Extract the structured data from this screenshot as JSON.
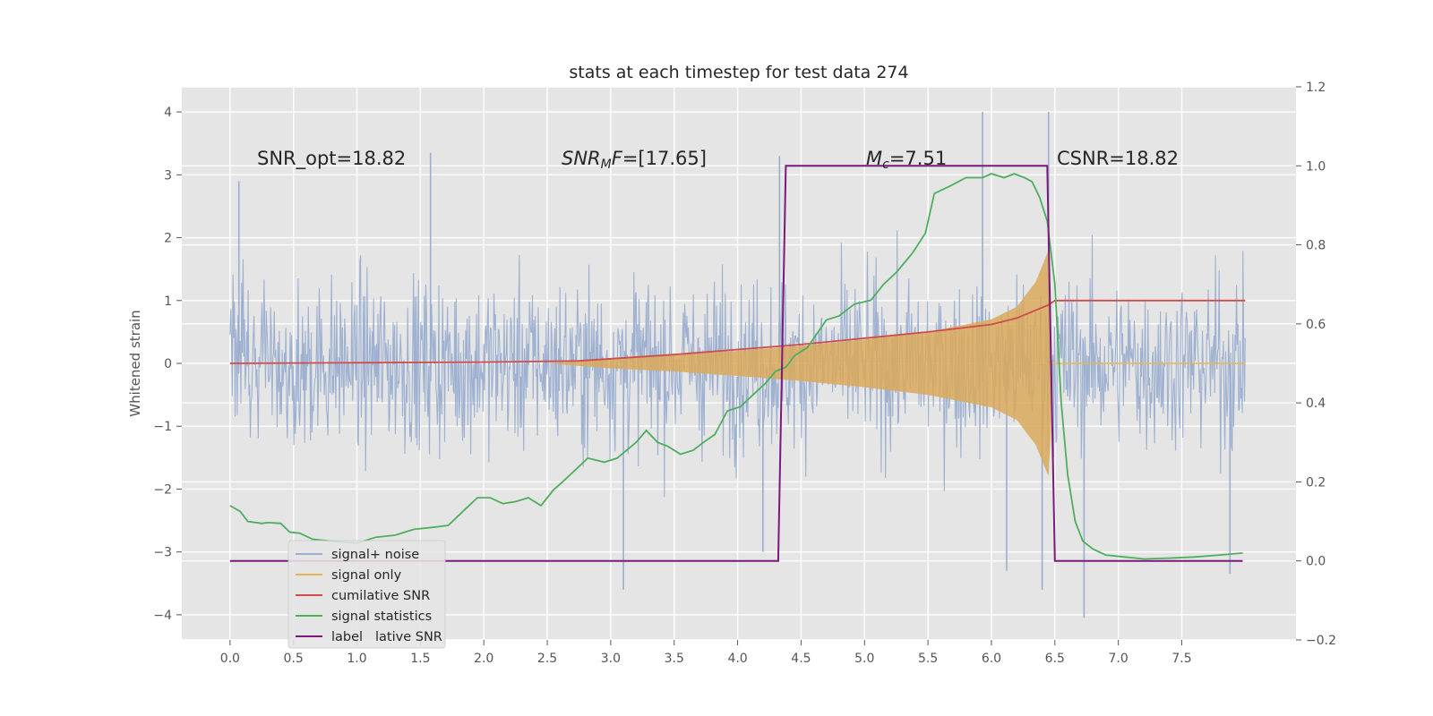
{
  "colors": {
    "background": "#E5E5E5",
    "grid": "#FFFFFF",
    "noise": "#9AAED0",
    "signal": "#E8B450",
    "signal_fill": "#D9A95A",
    "cumulative": "#D04B4B",
    "stats": "#4FAE5E",
    "label": "#7A1A7A"
  },
  "chart_data": {
    "type": "line",
    "title": "stats at each timestep for test data 274",
    "ylabel": "Whitened strain",
    "xlim": [
      -0.38,
      8.4
    ],
    "ylim": [
      -4.4,
      4.4
    ],
    "y2lim": [
      -0.2,
      1.2
    ],
    "grid": true,
    "legend_position": "lower-left",
    "x_ticks": [
      "0.0",
      "0.5",
      "1.0",
      "1.5",
      "2.0",
      "2.5",
      "3.0",
      "3.5",
      "4.0",
      "4.5",
      "5.0",
      "5.5",
      "6.0",
      "6.5",
      "7.0",
      "7.5"
    ],
    "y_ticks": [
      "4",
      "3",
      "2",
      "1",
      "0",
      "−1",
      "−2",
      "−3",
      "−4"
    ],
    "y2_ticks": [
      "1.2",
      "1.0",
      "0.8",
      "0.6",
      "0.4",
      "0.2",
      "0.0",
      "−0.2"
    ],
    "annotations": {
      "snr_opt": "SNR_opt=18.82",
      "snr_mf_main": "SNR",
      "snr_mf_sub": "M",
      "snr_mf_rest": "F=[17.65]",
      "mc_main": "M",
      "mc_sub": "c",
      "mc_rest": "=7.51",
      "csnr": "CSNR=18.82"
    },
    "legend": [
      "signal+ noise",
      "signal only",
      "cumilative SNR",
      "signal statistics",
      "label"
    ],
    "legend_overlap_text": "cumilative SNR",
    "series": [
      {
        "name": "signal+ noise",
        "axis": "left",
        "x_range": [
          0.0,
          8.0
        ],
        "envelope_upper": 2.2,
        "envelope_lower": -2.2,
        "peaks": [
          [
            0.07,
            2.9
          ],
          [
            1.58,
            3.35
          ],
          [
            4.33,
            3.3
          ],
          [
            5.93,
            4.0
          ],
          [
            6.45,
            4.0
          ],
          [
            3.1,
            -3.6
          ],
          [
            4.2,
            -3.0
          ],
          [
            6.12,
            -3.3
          ],
          [
            6.4,
            -3.6
          ],
          [
            6.73,
            -4.05
          ],
          [
            7.88,
            -3.35
          ]
        ]
      },
      {
        "name": "signal only",
        "axis": "left",
        "x": [
          2.5,
          3.0,
          3.5,
          4.0,
          4.5,
          5.0,
          5.5,
          6.0,
          6.2,
          6.35,
          6.45,
          6.5,
          8.0
        ],
        "amplitude": [
          0.0,
          0.08,
          0.13,
          0.2,
          0.28,
          0.38,
          0.5,
          0.7,
          0.9,
          1.3,
          1.8,
          0.0,
          0.0
        ]
      },
      {
        "name": "cumilative SNR",
        "axis": "left",
        "x": [
          0.0,
          1.0,
          2.0,
          2.75,
          3.5,
          4.5,
          5.5,
          6.0,
          6.2,
          6.45,
          6.5,
          8.0
        ],
        "y": [
          0.0,
          0.01,
          0.02,
          0.04,
          0.14,
          0.3,
          0.5,
          0.62,
          0.72,
          0.93,
          1.0,
          1.0
        ]
      },
      {
        "name": "signal statistics",
        "axis": "right",
        "x": [
          0.0,
          0.08,
          0.14,
          0.25,
          0.3,
          0.4,
          0.47,
          0.55,
          0.65,
          0.8,
          1.0,
          1.15,
          1.3,
          1.45,
          1.6,
          1.72,
          1.85,
          1.95,
          2.05,
          2.15,
          2.25,
          2.35,
          2.45,
          2.55,
          2.62,
          2.72,
          2.82,
          2.95,
          3.05,
          3.2,
          3.28,
          3.37,
          3.45,
          3.55,
          3.65,
          3.73,
          3.82,
          3.92,
          4.02,
          4.12,
          4.22,
          4.3,
          4.38,
          4.45,
          4.55,
          4.7,
          4.8,
          4.92,
          5.05,
          5.15,
          5.25,
          5.38,
          5.48,
          5.55,
          5.68,
          5.8,
          5.93,
          6.0,
          6.1,
          6.18,
          6.26,
          6.32,
          6.38,
          6.44,
          6.5,
          6.55,
          6.6,
          6.66,
          6.72,
          6.8,
          6.9,
          7.05,
          7.2,
          7.4,
          7.6,
          7.8,
          7.98
        ],
        "y": [
          0.14,
          0.125,
          0.1,
          0.095,
          0.097,
          0.095,
          0.073,
          0.07,
          0.055,
          0.05,
          0.045,
          0.06,
          0.065,
          0.08,
          0.085,
          0.09,
          0.13,
          0.16,
          0.16,
          0.145,
          0.15,
          0.16,
          0.14,
          0.18,
          0.2,
          0.23,
          0.26,
          0.25,
          0.26,
          0.3,
          0.33,
          0.3,
          0.29,
          0.27,
          0.28,
          0.3,
          0.32,
          0.38,
          0.39,
          0.42,
          0.45,
          0.48,
          0.49,
          0.52,
          0.54,
          0.61,
          0.62,
          0.65,
          0.66,
          0.7,
          0.73,
          0.78,
          0.83,
          0.93,
          0.95,
          0.97,
          0.97,
          0.98,
          0.97,
          0.98,
          0.97,
          0.96,
          0.92,
          0.86,
          0.7,
          0.4,
          0.22,
          0.1,
          0.05,
          0.03,
          0.015,
          0.01,
          0.005,
          0.007,
          0.01,
          0.015,
          0.02
        ]
      },
      {
        "name": "label",
        "axis": "right",
        "x": [
          0.0,
          4.32,
          4.38,
          6.44,
          6.5,
          7.98
        ],
        "y": [
          0.0,
          0.0,
          1.0,
          1.0,
          0.0,
          0.0
        ]
      }
    ]
  }
}
